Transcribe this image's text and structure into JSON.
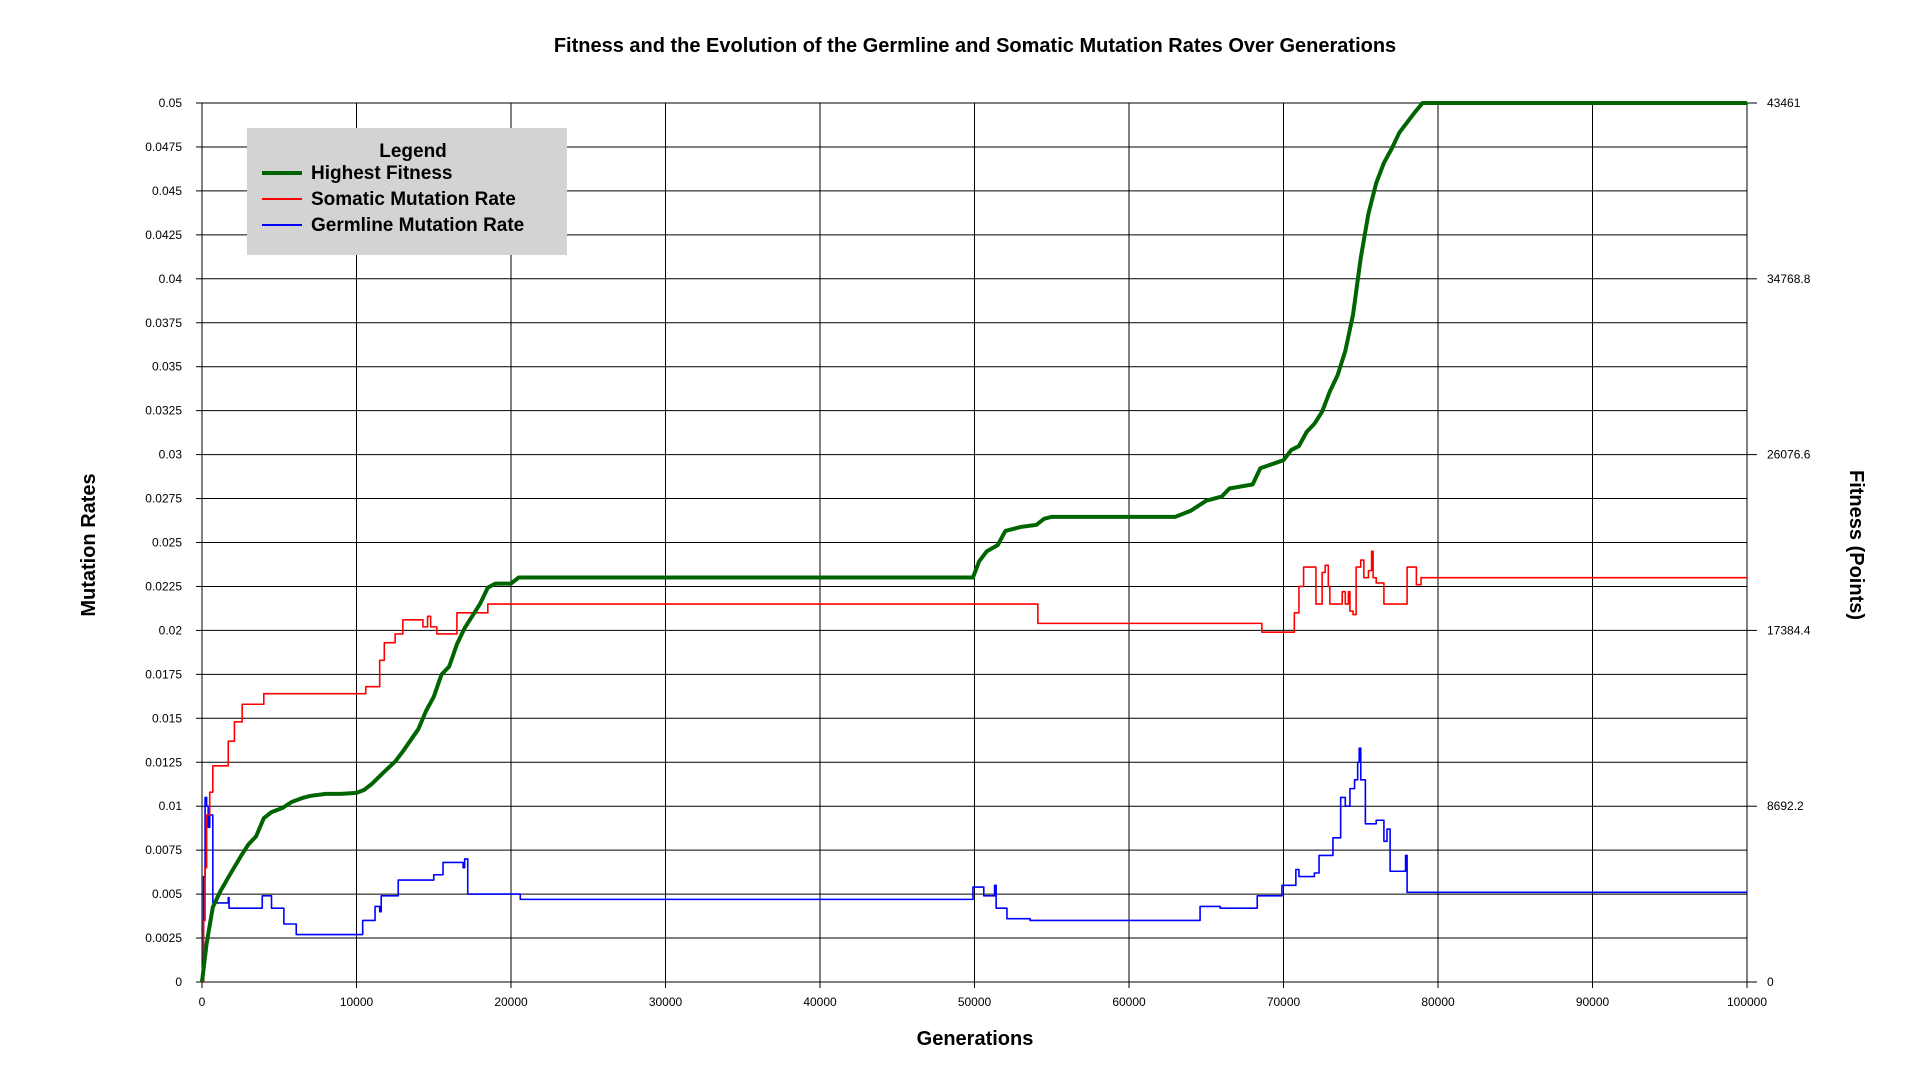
{
  "chart_data": {
    "type": "line",
    "title": "Fitness and the Evolution of the Germline and Somatic Mutation Rates Over Generations",
    "xlabel": "Generations",
    "ylabel": "Mutation Rates",
    "y2label": "Fitness (Points)",
    "xlim": [
      0,
      100000
    ],
    "ylim": [
      0,
      0.05
    ],
    "y2lim": [
      0,
      43461
    ],
    "grid": true,
    "legend": {
      "title": "Legend",
      "placement": "top-left",
      "entries": [
        {
          "label": "Highest Fitness",
          "color": "#006400"
        },
        {
          "label": "Somatic Mutation Rate",
          "color": "#ff0000"
        },
        {
          "label": "Germline Mutation Rate",
          "color": "#0000ff"
        }
      ]
    },
    "x_ticks": [
      {
        "value": 0,
        "label": "0"
      },
      {
        "value": 10000,
        "label": "10000"
      },
      {
        "value": 20000,
        "label": "20000"
      },
      {
        "value": 30000,
        "label": "30000"
      },
      {
        "value": 40000,
        "label": "40000"
      },
      {
        "value": 50000,
        "label": "50000"
      },
      {
        "value": 60000,
        "label": "60000"
      },
      {
        "value": 70000,
        "label": "70000"
      },
      {
        "value": 80000,
        "label": "80000"
      },
      {
        "value": 90000,
        "label": "90000"
      },
      {
        "value": 100000,
        "label": "100000"
      }
    ],
    "y_ticks": [
      {
        "value": 0,
        "label": "0"
      },
      {
        "value": 0.0025,
        "label": "0.0025"
      },
      {
        "value": 0.005,
        "label": "0.005"
      },
      {
        "value": 0.0075,
        "label": "0.0075"
      },
      {
        "value": 0.01,
        "label": "0.01"
      },
      {
        "value": 0.0125,
        "label": "0.0125"
      },
      {
        "value": 0.015,
        "label": "0.015"
      },
      {
        "value": 0.0175,
        "label": "0.0175"
      },
      {
        "value": 0.02,
        "label": "0.02"
      },
      {
        "value": 0.0225,
        "label": "0.0225"
      },
      {
        "value": 0.025,
        "label": "0.025"
      },
      {
        "value": 0.0275,
        "label": "0.0275"
      },
      {
        "value": 0.03,
        "label": "0.03"
      },
      {
        "value": 0.0325,
        "label": "0.0325"
      },
      {
        "value": 0.035,
        "label": "0.035"
      },
      {
        "value": 0.0375,
        "label": "0.0375"
      },
      {
        "value": 0.04,
        "label": "0.04"
      },
      {
        "value": 0.0425,
        "label": "0.0425"
      },
      {
        "value": 0.045,
        "label": "0.045"
      },
      {
        "value": 0.0475,
        "label": "0.0475"
      },
      {
        "value": 0.05,
        "label": "0.05"
      }
    ],
    "y2_ticks": [
      {
        "value": 0,
        "label": "0"
      },
      {
        "value": 8692.2,
        "label": "8692.2"
      },
      {
        "value": 17384.4,
        "label": "17384.4"
      },
      {
        "value": 26076.6,
        "label": "26076.6"
      },
      {
        "value": 34768.8,
        "label": "34768.8"
      },
      {
        "value": 43461,
        "label": "43461"
      }
    ],
    "series": [
      {
        "name": "Highest Fitness",
        "axis": "right",
        "color": "#006400",
        "step": false,
        "points": [
          [
            0,
            0
          ],
          [
            300,
            1900
          ],
          [
            700,
            3700
          ],
          [
            1200,
            4500
          ],
          [
            1800,
            5300
          ],
          [
            2500,
            6200
          ],
          [
            3000,
            6800
          ],
          [
            3500,
            7200
          ],
          [
            4000,
            8100
          ],
          [
            4500,
            8400
          ],
          [
            5200,
            8600
          ],
          [
            5800,
            8900
          ],
          [
            6500,
            9100
          ],
          [
            7000,
            9200
          ],
          [
            8000,
            9300
          ],
          [
            9000,
            9300
          ],
          [
            10000,
            9350
          ],
          [
            10500,
            9500
          ],
          [
            11000,
            9800
          ],
          [
            11800,
            10400
          ],
          [
            12500,
            10900
          ],
          [
            13000,
            11400
          ],
          [
            14000,
            12500
          ],
          [
            14500,
            13400
          ],
          [
            15000,
            14100
          ],
          [
            15500,
            15200
          ],
          [
            16000,
            15600
          ],
          [
            16500,
            16700
          ],
          [
            17000,
            17500
          ],
          [
            17500,
            18100
          ],
          [
            18000,
            18700
          ],
          [
            18500,
            19500
          ],
          [
            19000,
            19700
          ],
          [
            20000,
            19700
          ],
          [
            20500,
            20000
          ],
          [
            30000,
            20000
          ],
          [
            40000,
            20000
          ],
          [
            49900,
            20000
          ],
          [
            50300,
            20800
          ],
          [
            50800,
            21300
          ],
          [
            51500,
            21600
          ],
          [
            52000,
            22300
          ],
          [
            53000,
            22500
          ],
          [
            54000,
            22600
          ],
          [
            54500,
            22900
          ],
          [
            55000,
            23000
          ],
          [
            60000,
            23000
          ],
          [
            63000,
            23000
          ],
          [
            64000,
            23300
          ],
          [
            65000,
            23800
          ],
          [
            66000,
            24000
          ],
          [
            66500,
            24400
          ],
          [
            68000,
            24600
          ],
          [
            68500,
            25400
          ],
          [
            70000,
            25800
          ],
          [
            70500,
            26300
          ],
          [
            71000,
            26500
          ],
          [
            71500,
            27200
          ],
          [
            72000,
            27600
          ],
          [
            72500,
            28200
          ],
          [
            73000,
            29200
          ],
          [
            73500,
            30000
          ],
          [
            74000,
            31200
          ],
          [
            74500,
            33000
          ],
          [
            75000,
            35800
          ],
          [
            75500,
            38000
          ],
          [
            76000,
            39500
          ],
          [
            76500,
            40500
          ],
          [
            77000,
            41200
          ],
          [
            77500,
            42000
          ],
          [
            78000,
            42500
          ],
          [
            78500,
            43000
          ],
          [
            79000,
            43461
          ],
          [
            85000,
            43461
          ],
          [
            90000,
            43461
          ],
          [
            100000,
            43461
          ]
        ]
      },
      {
        "name": "Somatic Mutation Rate",
        "axis": "left",
        "color": "#ff0000",
        "step": true,
        "points": [
          [
            0,
            0.0
          ],
          [
            100,
            0.0035
          ],
          [
            200,
            0.0065
          ],
          [
            300,
            0.0095
          ],
          [
            500,
            0.0108
          ],
          [
            700,
            0.0123
          ],
          [
            1600,
            0.0123
          ],
          [
            1700,
            0.0137
          ],
          [
            2100,
            0.0148
          ],
          [
            2600,
            0.0158
          ],
          [
            3500,
            0.0158
          ],
          [
            4000,
            0.0164
          ],
          [
            10500,
            0.0164
          ],
          [
            10600,
            0.0168
          ],
          [
            11300,
            0.0168
          ],
          [
            11500,
            0.0183
          ],
          [
            11800,
            0.0193
          ],
          [
            12500,
            0.0198
          ],
          [
            13000,
            0.0206
          ],
          [
            14200,
            0.0206
          ],
          [
            14300,
            0.0202
          ],
          [
            14600,
            0.0208
          ],
          [
            14800,
            0.0202
          ],
          [
            15200,
            0.0198
          ],
          [
            16200,
            0.0198
          ],
          [
            16500,
            0.021
          ],
          [
            18500,
            0.0215
          ],
          [
            30000,
            0.0215
          ],
          [
            54000,
            0.0215
          ],
          [
            54100,
            0.0204
          ],
          [
            68500,
            0.0204
          ],
          [
            68600,
            0.0199
          ],
          [
            70500,
            0.0199
          ],
          [
            70700,
            0.021
          ],
          [
            71000,
            0.0225
          ],
          [
            71300,
            0.0236
          ],
          [
            72000,
            0.0236
          ],
          [
            72100,
            0.0215
          ],
          [
            72500,
            0.0233
          ],
          [
            72700,
            0.0237
          ],
          [
            72900,
            0.0225
          ],
          [
            73000,
            0.0215
          ],
          [
            73800,
            0.0222
          ],
          [
            74000,
            0.0215
          ],
          [
            74200,
            0.0222
          ],
          [
            74300,
            0.0211
          ],
          [
            74500,
            0.0209
          ],
          [
            74700,
            0.0236
          ],
          [
            75000,
            0.024
          ],
          [
            75200,
            0.023
          ],
          [
            75500,
            0.0234
          ],
          [
            75700,
            0.0245
          ],
          [
            75800,
            0.023
          ],
          [
            76000,
            0.0227
          ],
          [
            76500,
            0.0215
          ],
          [
            78000,
            0.0236
          ],
          [
            78600,
            0.0226
          ],
          [
            78900,
            0.023
          ],
          [
            100000,
            0.023
          ]
        ]
      },
      {
        "name": "Germline Mutation Rate",
        "axis": "left",
        "color": "#0000ff",
        "step": true,
        "points": [
          [
            0,
            0.0
          ],
          [
            100,
            0.006
          ],
          [
            200,
            0.0105
          ],
          [
            300,
            0.01
          ],
          [
            400,
            0.0088
          ],
          [
            500,
            0.0095
          ],
          [
            700,
            0.0045
          ],
          [
            1600,
            0.0045
          ],
          [
            1700,
            0.0048
          ],
          [
            1750,
            0.0042
          ],
          [
            3800,
            0.0042
          ],
          [
            3900,
            0.0049
          ],
          [
            4300,
            0.0049
          ],
          [
            4500,
            0.0042
          ],
          [
            5200,
            0.0042
          ],
          [
            5300,
            0.0033
          ],
          [
            6000,
            0.0033
          ],
          [
            6100,
            0.0027
          ],
          [
            10300,
            0.0027
          ],
          [
            10400,
            0.0035
          ],
          [
            11000,
            0.0035
          ],
          [
            11200,
            0.0043
          ],
          [
            11500,
            0.004
          ],
          [
            11600,
            0.0049
          ],
          [
            12500,
            0.0049
          ],
          [
            12700,
            0.0058
          ],
          [
            14800,
            0.0058
          ],
          [
            15000,
            0.0061
          ],
          [
            15500,
            0.0061
          ],
          [
            15600,
            0.0068
          ],
          [
            16800,
            0.0068
          ],
          [
            16900,
            0.0065
          ],
          [
            17000,
            0.007
          ],
          [
            17200,
            0.005
          ],
          [
            20500,
            0.005
          ],
          [
            20600,
            0.0047
          ],
          [
            30000,
            0.0047
          ],
          [
            49800,
            0.0047
          ],
          [
            49900,
            0.0054
          ],
          [
            50500,
            0.0054
          ],
          [
            50600,
            0.0049
          ],
          [
            51200,
            0.0049
          ],
          [
            51300,
            0.0055
          ],
          [
            51400,
            0.0042
          ],
          [
            52000,
            0.0042
          ],
          [
            52100,
            0.0036
          ],
          [
            53500,
            0.0036
          ],
          [
            53600,
            0.0035
          ],
          [
            64500,
            0.0035
          ],
          [
            64600,
            0.0043
          ],
          [
            65800,
            0.0043
          ],
          [
            65900,
            0.0042
          ],
          [
            68200,
            0.0042
          ],
          [
            68300,
            0.0049
          ],
          [
            69800,
            0.0049
          ],
          [
            69900,
            0.0055
          ],
          [
            70700,
            0.0055
          ],
          [
            70800,
            0.0064
          ],
          [
            71000,
            0.006
          ],
          [
            72000,
            0.0062
          ],
          [
            72300,
            0.0072
          ],
          [
            73000,
            0.0072
          ],
          [
            73200,
            0.0082
          ],
          [
            73500,
            0.0082
          ],
          [
            73700,
            0.0105
          ],
          [
            74000,
            0.01
          ],
          [
            74300,
            0.011
          ],
          [
            74600,
            0.0115
          ],
          [
            74800,
            0.0125
          ],
          [
            74900,
            0.0133
          ],
          [
            75000,
            0.0115
          ],
          [
            75300,
            0.009
          ],
          [
            76000,
            0.0092
          ],
          [
            76500,
            0.008
          ],
          [
            76700,
            0.0087
          ],
          [
            76900,
            0.0063
          ],
          [
            77800,
            0.0063
          ],
          [
            77900,
            0.0072
          ],
          [
            78000,
            0.0051
          ],
          [
            90000,
            0.0051
          ],
          [
            100000,
            0.0051
          ]
        ]
      }
    ]
  }
}
